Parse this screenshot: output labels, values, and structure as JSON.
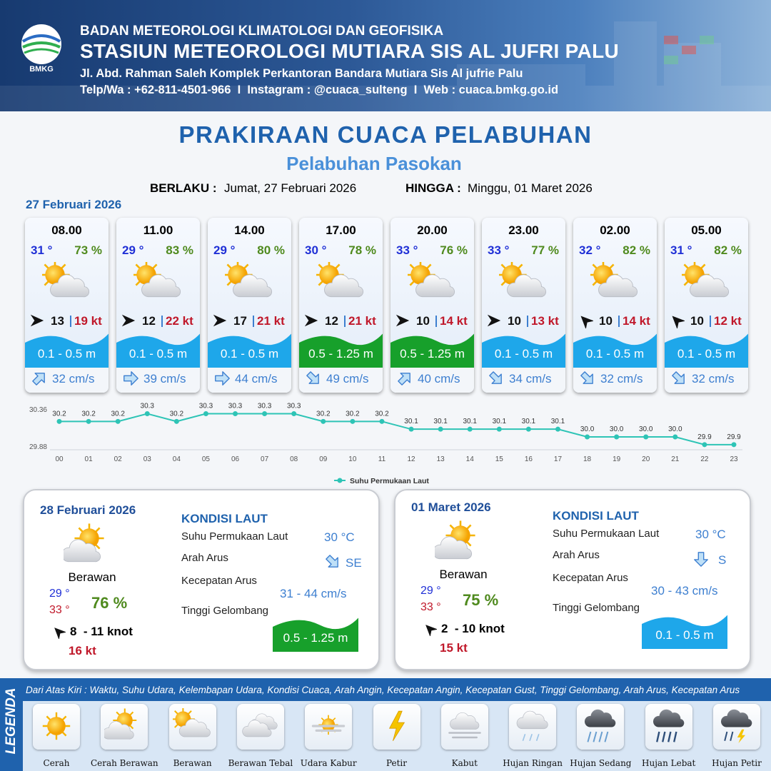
{
  "header": {
    "logo": "BMKG",
    "agency": "BADAN METEOROLOGI KLIMATOLOGI DAN GEOFISIKA",
    "station": "STASIUN METEOROLOGI MUTIARA SIS AL JUFRI PALU",
    "address": "Jl. Abd. Rahman Saleh Komplek Perkantoran Bandara Mutiara Sis Al jufrie Palu",
    "contact": "Telp/Wa : +62-811-4501-966  I  Instagram : @cuaca_sulteng  I  Web : cuaca.bmkg.go.id"
  },
  "title": "PRAKIRAAN CUACA PELABUHAN",
  "subtitle": "Pelabuhan Pasokan",
  "validity": {
    "from_label": "BERLAKU :",
    "from": "Jumat, 27 Februari 2026",
    "to_label": "HINGGA :",
    "to": "Minggu, 01 Maret 2026"
  },
  "day1": {
    "date": "27 Februari 2026",
    "cards": [
      {
        "time": "08.00",
        "temp": "31 °",
        "humidity": "73 %",
        "wind": "13",
        "gust": "19 kt",
        "wave": "0.1 - 0.5 m",
        "current": "32 cm/s"
      },
      {
        "time": "11.00",
        "temp": "29 °",
        "humidity": "83 %",
        "wind": "12",
        "gust": "22 kt",
        "wave": "0.1 - 0.5 m",
        "current": "39 cm/s"
      },
      {
        "time": "14.00",
        "temp": "29 °",
        "humidity": "80 %",
        "wind": "17",
        "gust": "21 kt",
        "wave": "0.1 - 0.5 m",
        "current": "44 cm/s"
      },
      {
        "time": "17.00",
        "temp": "30 °",
        "humidity": "78 %",
        "wind": "12",
        "gust": "21 kt",
        "wave": "0.5 - 1.25 m",
        "current": "49 cm/s"
      },
      {
        "time": "20.00",
        "temp": "33 °",
        "humidity": "76 %",
        "wind": "10",
        "gust": "14 kt",
        "wave": "0.5 - 1.25 m",
        "current": "40 cm/s"
      },
      {
        "time": "23.00",
        "temp": "33 °",
        "humidity": "77 %",
        "wind": "10",
        "gust": "13 kt",
        "wave": "0.1 - 0.5 m",
        "current": "34 cm/s"
      },
      {
        "time": "02.00",
        "temp": "32 °",
        "humidity": "82 %",
        "wind": "10",
        "gust": "14 kt",
        "wave": "0.1 - 0.5 m",
        "current": "32 cm/s"
      },
      {
        "time": "05.00",
        "temp": "31 °",
        "humidity": "82 %",
        "wind": "10",
        "gust": "12 kt",
        "wave": "0.1 - 0.5 m",
        "current": "32 cm/s"
      }
    ]
  },
  "chart_data": {
    "type": "line",
    "categories": [
      "00",
      "01",
      "02",
      "03",
      "04",
      "05",
      "06",
      "07",
      "08",
      "09",
      "10",
      "11",
      "12",
      "13",
      "14",
      "15",
      "16",
      "17",
      "18",
      "19",
      "20",
      "21",
      "22",
      "23"
    ],
    "series": [
      {
        "name": "Suhu Permukaan Laut",
        "color": "#2ec4b6",
        "values": [
          30.2,
          30.2,
          30.2,
          30.3,
          30.2,
          30.3,
          30.3,
          30.3,
          30.3,
          30.2,
          30.2,
          30.2,
          30.1,
          30.1,
          30.1,
          30.1,
          30.1,
          30.1,
          30.0,
          30.0,
          30.0,
          30.0,
          29.9,
          29.9
        ],
        "value_labels": [
          "30.2",
          "30.2",
          "30.2",
          "30.3",
          "30.2",
          "30.3",
          "30.3",
          "30.3",
          "30.3",
          "30.2",
          "30.2",
          "30.2",
          "30.1",
          "30.1",
          "30.1",
          "30.1",
          "30.1",
          "30.1",
          "30.0",
          "30.0",
          "30.0",
          "30.0",
          "29.9",
          "29.9"
        ]
      }
    ],
    "ylim": [
      29.88,
      30.36
    ],
    "yticks": [
      29.88,
      30.36
    ],
    "legend": "bottom"
  },
  "days": [
    {
      "date": "28 Februari 2026",
      "condition": "Berawan",
      "tmin": "29 °",
      "tmax": "33 °",
      "humidity": "76 %",
      "wind": "8  - 11 knot",
      "gust": "16 kt",
      "sea_title": "KONDISI LAUT",
      "sst_label": "Suhu Permukaan Laut",
      "sst": "30 °C",
      "dir_label": "Arah Arus",
      "dir": "SE",
      "speed_label": "Kecepatan Arus",
      "speed": "31 - 44 cm/s",
      "wave_label": "Tinggi Gelombang",
      "wave": "0.5 - 1.25 m"
    },
    {
      "date": "01 Maret 2026",
      "condition": "Berawan",
      "tmin": "29 °",
      "tmax": "33 °",
      "humidity": "75 %",
      "wind": "2  - 10 knot",
      "gust": "15 kt",
      "sea_title": "KONDISI LAUT",
      "sst_label": "Suhu Permukaan Laut",
      "sst": "30 °C",
      "dir_label": "Arah Arus",
      "dir": "S",
      "speed_label": "Kecepatan Arus",
      "speed": "30 - 43 cm/s",
      "wave_label": "Tinggi Gelombang",
      "wave": "0.1 - 0.5 m"
    }
  ],
  "legend": {
    "title": "LEGENDA",
    "description": "Dari Atas Kiri : Waktu, Suhu Udara, Kelembapan Udara, Kondisi Cuaca, Arah Angin, Kecepatan Angin, Kecepatan Gust, Tinggi Gelombang, Arah Arus, Kecepatan Arus",
    "items": [
      "Cerah",
      "Cerah Berawan",
      "Berawan",
      "Berawan Tebal",
      "Udara Kabur",
      "Petir",
      "Kabut",
      "Hujan Ringan",
      "Hujan Sedang",
      "Hujan Lebat",
      "Hujan Petir"
    ]
  }
}
